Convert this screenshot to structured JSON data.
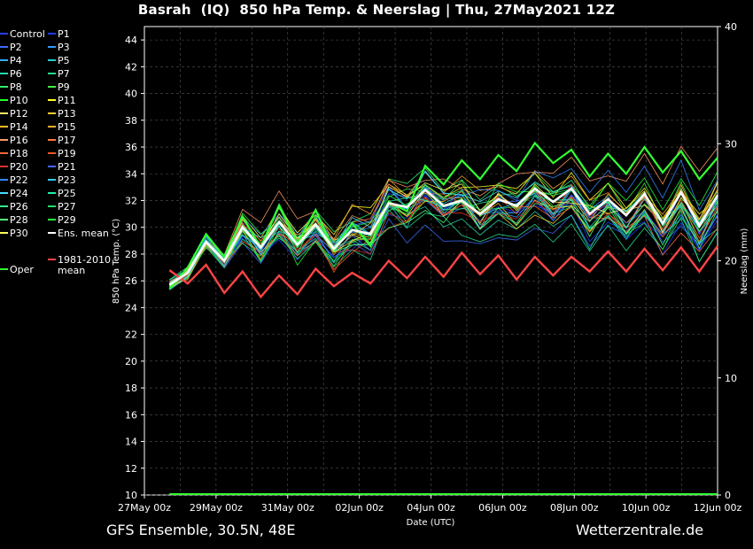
{
  "header": {
    "title": "Basrah  (IQ)  850 hPa Temp. & Neerslag | Thu, 27May2021 12Z"
  },
  "footer": {
    "left": "GFS Ensemble, 30.5N, 48E",
    "right": "Wetterzentrale.de"
  },
  "chart_data": {
    "type": "line",
    "title": "Basrah  (IQ)  850 hPa Temp. & Neerslag | Thu, 27May2021 12Z",
    "xlabel": "Date (UTC)",
    "ylabel": "850 hPa Temp. (°C)",
    "ylabel_right": "Neerslag (mm)",
    "ylim": [
      10,
      45
    ],
    "ylim_right": [
      0,
      40
    ],
    "y_ticks": [
      10,
      12,
      14,
      16,
      18,
      20,
      22,
      24,
      26,
      28,
      30,
      32,
      34,
      36,
      38,
      40,
      42,
      44
    ],
    "y_ticks_right": [
      0,
      10,
      20,
      30,
      40
    ],
    "x_range": [
      "2021-05-27 00Z",
      "2021-06-12 00Z"
    ],
    "x_tick_labels": [
      "27May 00z",
      "29May 00z",
      "31May 00z",
      "02Jun 00z",
      "04Jun 00z",
      "06Jun 00z",
      "08Jun 00z",
      "10Jun 00z",
      "12Jun 00z"
    ],
    "grid": true,
    "legend_position": "left",
    "legend": [
      {
        "label": "Control",
        "color": "#2040ff"
      },
      {
        "label": "P1",
        "color": "#1a3cff"
      },
      {
        "label": "P2",
        "color": "#3a6cff"
      },
      {
        "label": "P3",
        "color": "#3399ff"
      },
      {
        "label": "P4",
        "color": "#33aaff"
      },
      {
        "label": "P5",
        "color": "#22cccc"
      },
      {
        "label": "P6",
        "color": "#22ddaa"
      },
      {
        "label": "P7",
        "color": "#22dd88"
      },
      {
        "label": "P8",
        "color": "#33ee66"
      },
      {
        "label": "P9",
        "color": "#44ee44"
      },
      {
        "label": "P10",
        "color": "#22ff22"
      },
      {
        "label": "P11",
        "color": "#ffff22"
      },
      {
        "label": "P12",
        "color": "#ffee66"
      },
      {
        "label": "P13",
        "color": "#ffcc33"
      },
      {
        "label": "P14",
        "color": "#ffbb22"
      },
      {
        "label": "P15",
        "color": "#ffaa33"
      },
      {
        "label": "P16",
        "color": "#ff9966"
      },
      {
        "label": "P17",
        "color": "#ff7744"
      },
      {
        "label": "P18",
        "color": "#ff6633"
      },
      {
        "label": "P19",
        "color": "#ee5522"
      },
      {
        "label": "P20",
        "color": "#dd3322"
      },
      {
        "label": "P21",
        "color": "#4466ff"
      },
      {
        "label": "P22",
        "color": "#3388ff"
      },
      {
        "label": "P23",
        "color": "#33ccff"
      },
      {
        "label": "P24",
        "color": "#44ddff"
      },
      {
        "label": "P25",
        "color": "#22eeaa"
      },
      {
        "label": "P26",
        "color": "#33ee88"
      },
      {
        "label": "P27",
        "color": "#22dd66"
      },
      {
        "label": "P28",
        "color": "#55ff77"
      },
      {
        "label": "P29",
        "color": "#22ff44"
      },
      {
        "label": "P30",
        "color": "#ffff55"
      },
      {
        "label": "Ens. mean",
        "color": "#ffffff"
      },
      {
        "label": "Oper",
        "color": "#33ff33"
      },
      {
        "label": "1981-2010\nmean",
        "color": "#ff4444"
      }
    ],
    "series": [
      {
        "name": "Ens. mean",
        "color": "#ffffff",
        "y": [
          25.7,
          26.6,
          28.9,
          27.5,
          30.0,
          28.5,
          30.4,
          28.7,
          30.2,
          28.4,
          29.8,
          29.5,
          31.8,
          31.5,
          32.8,
          31.6,
          32.0,
          31.0,
          32.1,
          31.6,
          32.9,
          31.9,
          32.9,
          31.0,
          32.1,
          30.9,
          32.5,
          30.3,
          32.6,
          30.1,
          32.4
        ]
      },
      {
        "name": "Oper",
        "color": "#33ff33",
        "y": [
          25.4,
          27.0,
          29.5,
          27.8,
          30.8,
          28.5,
          31.6,
          28.8,
          31.3,
          28.3,
          30.3,
          28.6,
          31.9,
          31.2,
          34.6,
          33.2,
          35.0,
          33.6,
          35.4,
          34.2,
          36.3,
          34.8,
          35.8,
          33.8,
          35.5,
          34.0,
          36.0,
          34.1,
          35.7,
          33.6,
          35.2
        ]
      },
      {
        "name": "1981-2010\nmean",
        "color": "#ff4444",
        "y": [
          26.8,
          25.8,
          27.2,
          25.1,
          26.7,
          24.8,
          26.4,
          25.0,
          26.9,
          25.6,
          26.6,
          25.8,
          27.5,
          26.2,
          27.8,
          26.3,
          28.1,
          26.5,
          27.9,
          26.1,
          27.8,
          26.4,
          27.8,
          26.7,
          28.2,
          26.7,
          28.4,
          26.8,
          28.5,
          26.7,
          28.6
        ]
      }
    ],
    "precipitation": {
      "name": "Neerslag",
      "color": "#33ff33",
      "values_mm": [
        0,
        0,
        0,
        0,
        0,
        0,
        0,
        0,
        0,
        0,
        0,
        0,
        0,
        0,
        0,
        0,
        0,
        0,
        0,
        0,
        0,
        0,
        0,
        0,
        0,
        0,
        0,
        0,
        0,
        0,
        0
      ]
    }
  }
}
